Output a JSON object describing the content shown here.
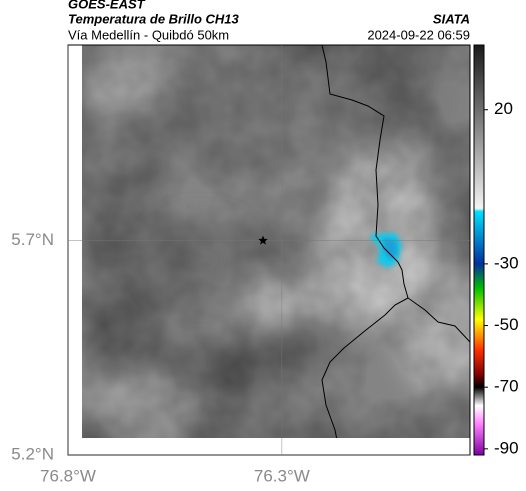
{
  "header": {
    "source": "GOES-EAST",
    "title": "Temperatura de Brillo CH13",
    "subtitle": "Vía Medellín - Quibdó 50km",
    "org": "SIATA",
    "datetime": "2024-09-22 06:59"
  },
  "map": {
    "xlim": [
      -76.8,
      -75.86
    ],
    "ylim": [
      5.2,
      6.156
    ],
    "xticks": [
      {
        "value": -76.8,
        "label": "76.8°W"
      },
      {
        "value": -76.3,
        "label": "76.3°W"
      }
    ],
    "yticks": [
      {
        "value": 5.7,
        "label": "5.7°N"
      },
      {
        "value": 5.2,
        "label": "5.2°N"
      }
    ],
    "grid": true,
    "marker": {
      "lon": -76.344,
      "lat": 5.7
    }
  },
  "colorbar": {
    "clim": [
      -92,
      41
    ],
    "ticks": [
      20,
      -30,
      -50,
      -70,
      -90
    ],
    "colormap": [
      {
        "value": 41,
        "color": "#1a1a1a"
      },
      {
        "value": 20,
        "color": "#6e6e6e"
      },
      {
        "value": -12,
        "color": "#f4f4f4"
      },
      {
        "value": -13,
        "color": "#00e0ff"
      },
      {
        "value": -30,
        "color": "#0030a0"
      },
      {
        "value": -38,
        "color": "#00c000"
      },
      {
        "value": -48,
        "color": "#ffff00"
      },
      {
        "value": -58,
        "color": "#ff3000"
      },
      {
        "value": -66,
        "color": "#800000"
      },
      {
        "value": -70,
        "color": "#000000"
      },
      {
        "value": -76,
        "color": "#ffffff"
      },
      {
        "value": -82,
        "color": "#ff80ff"
      },
      {
        "value": -92,
        "color": "#8000a0"
      }
    ]
  }
}
